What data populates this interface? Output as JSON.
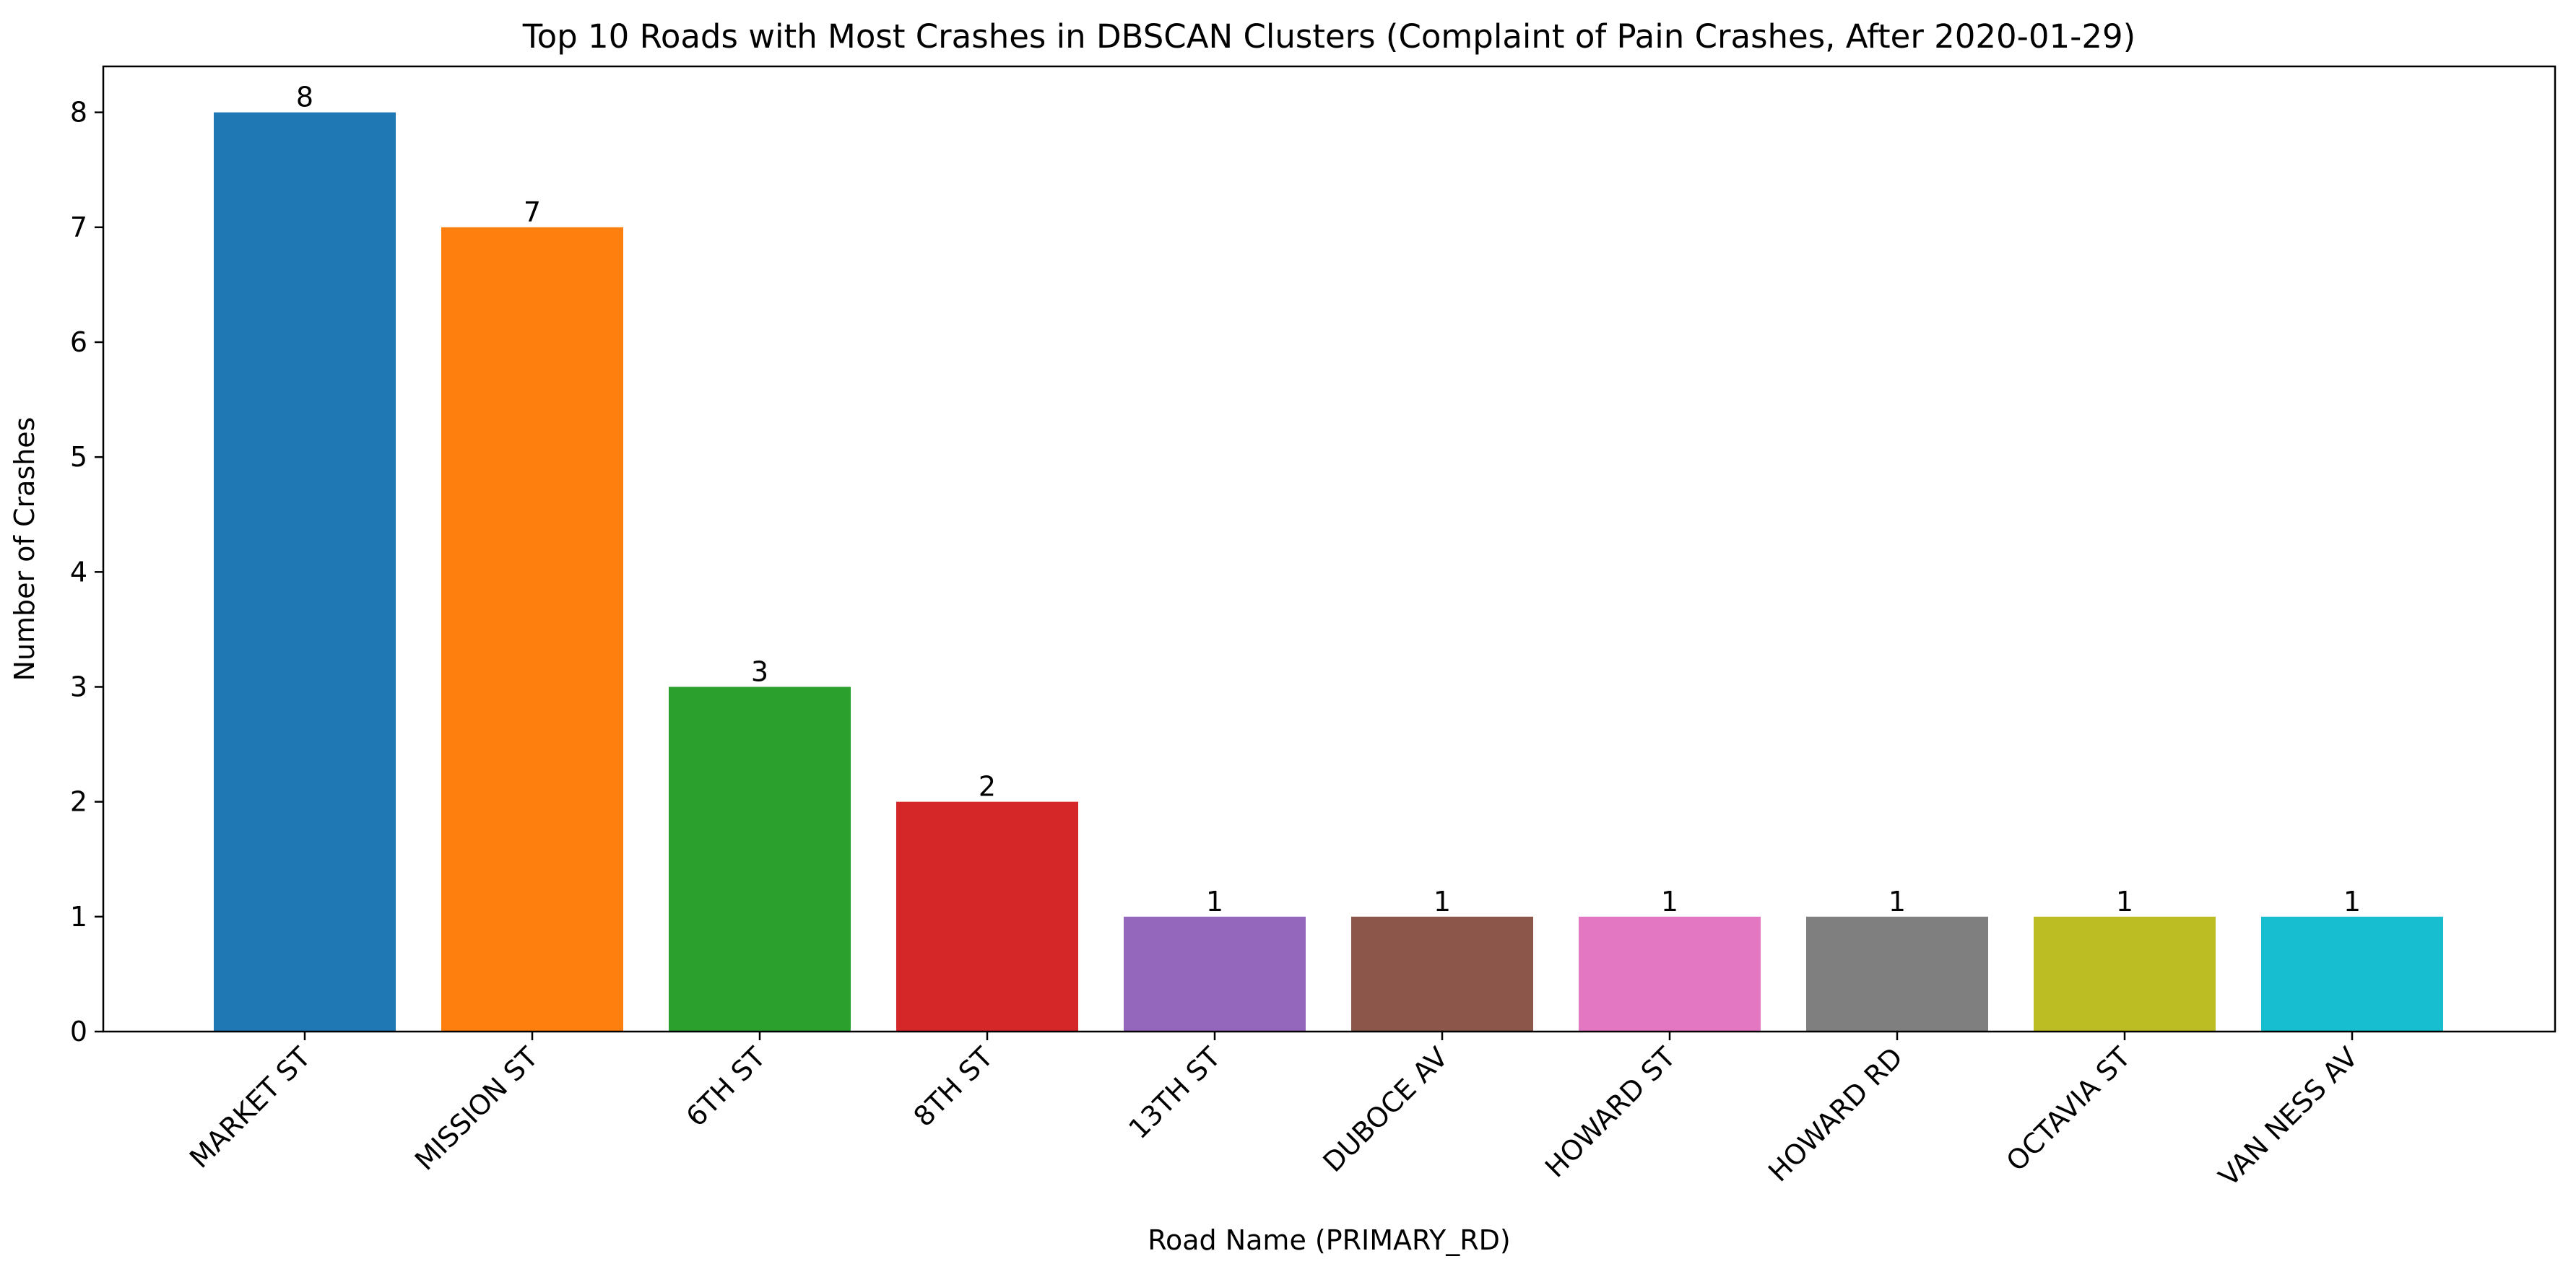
{
  "chart_data": {
    "type": "bar",
    "title": "Top 10 Roads with Most Crashes in DBSCAN Clusters (Complaint of Pain Crashes, After 2020-01-29)",
    "xlabel": "Road Name (PRIMARY_RD)",
    "ylabel": "Number of Crashes",
    "categories": [
      "MARKET ST",
      "MISSION ST",
      "6TH ST",
      "8TH ST",
      "13TH ST",
      "DUBOCE AV",
      "HOWARD ST",
      "HOWARD RD",
      "OCTAVIA ST",
      "VAN NESS AV"
    ],
    "values": [
      8,
      7,
      3,
      2,
      1,
      1,
      1,
      1,
      1,
      1
    ],
    "value_labels": [
      "8",
      "7",
      "3",
      "2",
      "1",
      "1",
      "1",
      "1",
      "1",
      "1"
    ],
    "colors": [
      "#1f77b4",
      "#ff7f0e",
      "#2ca02c",
      "#d62728",
      "#9467bd",
      "#8c564b",
      "#e377c2",
      "#7f7f7f",
      "#bcbd22",
      "#17becf"
    ],
    "ylim": [
      0,
      8.4
    ],
    "yticks": [
      0,
      1,
      2,
      3,
      4,
      5,
      6,
      7,
      8
    ],
    "ytick_labels": [
      "0",
      "1",
      "2",
      "3",
      "4",
      "5",
      "6",
      "7",
      "8"
    ],
    "grid": false,
    "legend": "none",
    "xtick_rotation_deg": 45
  }
}
